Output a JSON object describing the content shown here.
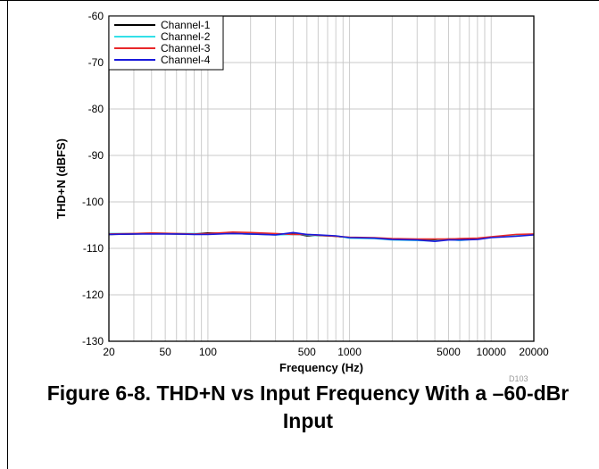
{
  "figure": {
    "caption": "Figure 6-8. THD+N vs Input Frequency With a –60-dBr Input",
    "plot_id": "D103"
  },
  "chart_data": {
    "type": "line",
    "title": "",
    "xlabel": "Frequency (Hz)",
    "ylabel": "THD+N (dBFS)",
    "x_scale": "log",
    "xlim": [
      20,
      20000
    ],
    "ylim": [
      -130,
      -60
    ],
    "xticks": [
      20,
      50,
      100,
      500,
      1000,
      5000,
      10000,
      20000
    ],
    "xtick_labels": [
      "20",
      "50",
      "100",
      "500",
      "1000",
      "5000",
      "10000",
      "20000"
    ],
    "yticks": [
      -60,
      -70,
      -80,
      -90,
      -100,
      -110,
      -120,
      -130
    ],
    "ytick_labels": [
      "-60",
      "-70",
      "-80",
      "-90",
      "-100",
      "-110",
      "-120",
      "-130"
    ],
    "grid": true,
    "legend_position": "top-left",
    "x": [
      20,
      30,
      40,
      60,
      80,
      100,
      150,
      200,
      300,
      400,
      500,
      600,
      800,
      1000,
      1500,
      2000,
      3000,
      4000,
      5000,
      6000,
      8000,
      10000,
      15000,
      20000
    ],
    "series": [
      {
        "name": "Channel-1",
        "color": "#000000",
        "values": [
          -107.0,
          -106.9,
          -106.8,
          -106.9,
          -106.9,
          -106.7,
          -106.8,
          -106.9,
          -107.0,
          -106.8,
          -107.3,
          -107.2,
          -107.4,
          -107.7,
          -107.8,
          -108.0,
          -108.1,
          -108.2,
          -108.0,
          -108.1,
          -108.0,
          -107.6,
          -107.3,
          -107.0
        ]
      },
      {
        "name": "Channel-2",
        "color": "#33e0e8",
        "values": [
          -106.8,
          -106.8,
          -106.7,
          -106.8,
          -106.8,
          -106.9,
          -106.8,
          -106.9,
          -107.1,
          -107.0,
          -107.1,
          -107.3,
          -107.3,
          -107.8,
          -107.9,
          -108.2,
          -108.3,
          -108.4,
          -108.1,
          -108.3,
          -108.0,
          -107.6,
          -107.2,
          -107.0
        ]
      },
      {
        "name": "Channel-3",
        "color": "#e8282a",
        "values": [
          -106.9,
          -106.8,
          -106.7,
          -106.8,
          -106.9,
          -106.8,
          -106.5,
          -106.6,
          -106.8,
          -107.0,
          -107.0,
          -107.2,
          -107.4,
          -107.6,
          -107.7,
          -107.9,
          -108.0,
          -108.0,
          -108.0,
          -107.9,
          -107.8,
          -107.5,
          -107.0,
          -106.9
        ]
      },
      {
        "name": "Channel-4",
        "color": "#1a1adc",
        "values": [
          -107.0,
          -106.9,
          -106.9,
          -106.9,
          -107.0,
          -107.0,
          -106.8,
          -106.9,
          -107.1,
          -106.6,
          -107.0,
          -107.1,
          -107.3,
          -107.7,
          -107.8,
          -108.1,
          -108.2,
          -108.5,
          -108.2,
          -108.2,
          -108.1,
          -107.7,
          -107.4,
          -107.1
        ]
      }
    ]
  }
}
